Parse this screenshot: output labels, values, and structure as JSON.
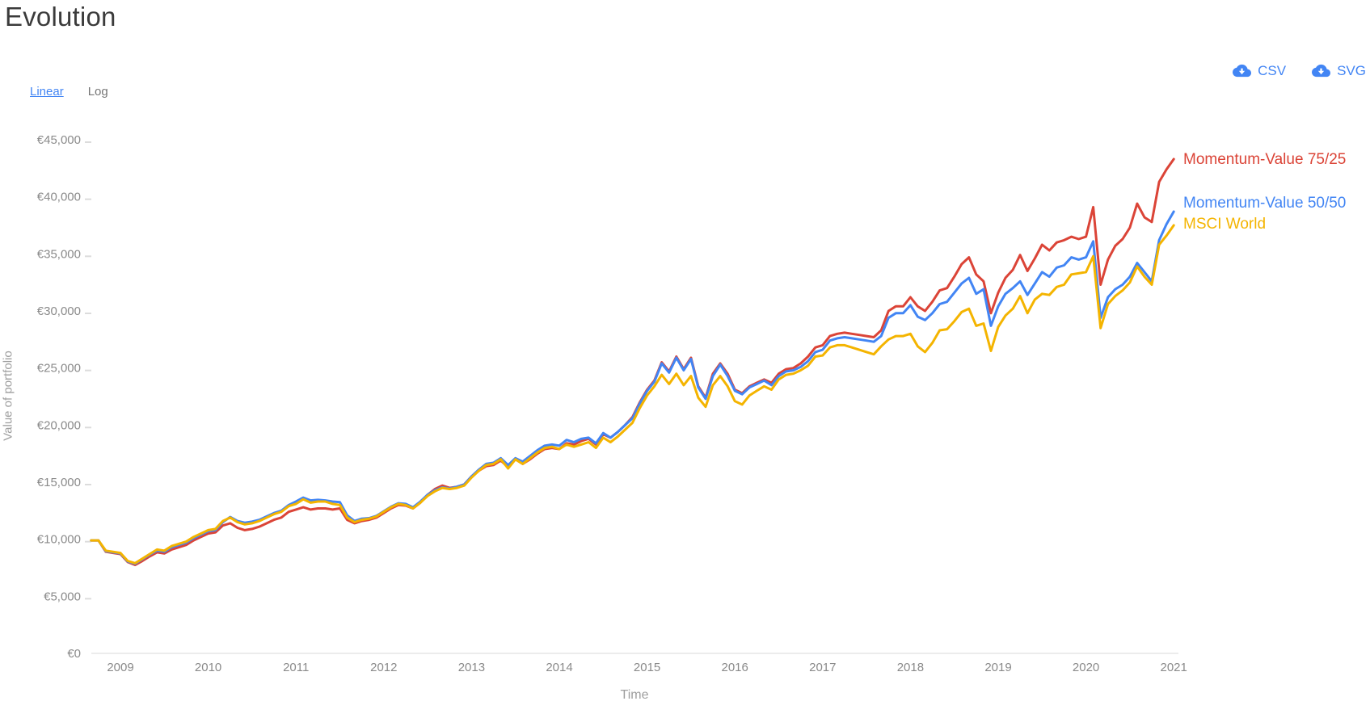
{
  "page": {
    "title": "Evolution"
  },
  "scale_toggle": {
    "linear_label": "Linear",
    "log_label": "Log",
    "active": "Linear"
  },
  "export_buttons": {
    "csv_label": "CSV",
    "svg_label": "SVG",
    "accent_color": "#4285F4"
  },
  "chart_data": {
    "type": "line",
    "title": "Evolution",
    "xlabel": "Time",
    "ylabel": "Value of portfolio",
    "grid": "off",
    "legend_position": "end-of-line-right",
    "x_axis": {
      "title": "Time",
      "tick_labels": [
        "2009",
        "2010",
        "2011",
        "2012",
        "2013",
        "2014",
        "2015",
        "2016",
        "2017",
        "2018",
        "2019",
        "2020",
        "2021"
      ]
    },
    "y_axis": {
      "title": "Value of portfolio",
      "tick_labels": [
        "€0",
        "€5,000",
        "€10,000",
        "€15,000",
        "€20,000",
        "€25,000",
        "€30,000",
        "€35,000",
        "€40,000",
        "€45,000"
      ],
      "tick_values": [
        0,
        5000,
        10000,
        15000,
        20000,
        25000,
        30000,
        35000,
        40000,
        45000
      ],
      "range": [
        0,
        45000
      ],
      "currency": "EUR"
    },
    "x_start_month": "2008-09",
    "x_end_month": "2021-01",
    "x_interval": "monthly",
    "series": [
      {
        "name": "Momentum-Value 75/25",
        "color": "#DB4437",
        "values": [
          9900,
          9900,
          8900,
          8800,
          8700,
          8000,
          7750,
          8100,
          8500,
          8850,
          8750,
          9100,
          9300,
          9500,
          9900,
          10200,
          10500,
          10600,
          11200,
          11400,
          11000,
          10800,
          10900,
          11100,
          11400,
          11700,
          11900,
          12400,
          12600,
          12800,
          12600,
          12700,
          12700,
          12600,
          12700,
          11700,
          11400,
          11600,
          11700,
          11900,
          12300,
          12700,
          13000,
          12950,
          12700,
          13200,
          13900,
          14400,
          14700,
          14500,
          14600,
          14800,
          15500,
          16000,
          16400,
          16500,
          16900,
          16300,
          17000,
          16600,
          17000,
          17500,
          17900,
          18000,
          17900,
          18400,
          18300,
          18600,
          18800,
          18300,
          19200,
          18900,
          19400,
          20000,
          20700,
          22000,
          23100,
          23900,
          25500,
          24700,
          26000,
          24900,
          25900,
          23400,
          22400,
          24500,
          25400,
          24500,
          23100,
          22800,
          23400,
          23700,
          24000,
          23700,
          24500,
          24900,
          25000,
          25400,
          26000,
          26800,
          27000,
          27800,
          28000,
          28100,
          28000,
          27900,
          27800,
          27700,
          28300,
          30000,
          30400,
          30400,
          31200,
          30400,
          30000,
          30800,
          31800,
          32000,
          33000,
          34100,
          34700,
          33200,
          32600,
          29800,
          31600,
          32900,
          33600,
          34900,
          33500,
          34600,
          35800,
          35300,
          36000,
          36200,
          36500,
          36300,
          36500,
          39100,
          32300,
          34500,
          35700,
          36300,
          37300,
          39400,
          38200,
          37800,
          41300,
          42400,
          43300
        ]
      },
      {
        "name": "Momentum-Value 50/50",
        "color": "#4285F4",
        "values": [
          9900,
          9900,
          8950,
          8850,
          8750,
          8050,
          7850,
          8250,
          8650,
          9000,
          8900,
          9300,
          9500,
          9700,
          10100,
          10400,
          10700,
          10800,
          11500,
          11950,
          11600,
          11450,
          11550,
          11700,
          12000,
          12300,
          12500,
          13000,
          13300,
          13650,
          13400,
          13450,
          13400,
          13300,
          13250,
          12100,
          11600,
          11800,
          11850,
          12050,
          12450,
          12850,
          13150,
          13100,
          12800,
          13300,
          13900,
          14300,
          14550,
          14450,
          14600,
          14800,
          15500,
          16100,
          16600,
          16700,
          17100,
          16500,
          17100,
          16800,
          17300,
          17800,
          18200,
          18300,
          18200,
          18700,
          18500,
          18800,
          18900,
          18400,
          19300,
          18900,
          19400,
          20000,
          20600,
          21900,
          23000,
          23800,
          25400,
          24600,
          25900,
          24800,
          25800,
          23300,
          22300,
          24300,
          25300,
          24300,
          23000,
          22700,
          23300,
          23600,
          23900,
          23500,
          24300,
          24700,
          24800,
          25100,
          25600,
          26400,
          26600,
          27400,
          27600,
          27700,
          27600,
          27500,
          27400,
          27300,
          27800,
          29400,
          29800,
          29800,
          30500,
          29500,
          29200,
          29800,
          30600,
          30800,
          31600,
          32400,
          32900,
          31500,
          31900,
          28700,
          30400,
          31500,
          32000,
          32600,
          31400,
          32400,
          33400,
          33000,
          33800,
          34000,
          34700,
          34500,
          34700,
          36100,
          29400,
          31200,
          31900,
          32300,
          33000,
          34200,
          33400,
          32600,
          36200,
          37600,
          38700
        ]
      },
      {
        "name": "MSCI World",
        "color": "#F4B400",
        "values": [
          9900,
          9900,
          9000,
          8900,
          8800,
          8100,
          7900,
          8300,
          8700,
          9100,
          9000,
          9400,
          9600,
          9800,
          10200,
          10500,
          10800,
          10900,
          11600,
          11900,
          11500,
          11300,
          11400,
          11600,
          11900,
          12200,
          12400,
          12900,
          13100,
          13500,
          13200,
          13300,
          13300,
          13100,
          13000,
          11900,
          11500,
          11700,
          11800,
          12000,
          12400,
          12800,
          13100,
          13000,
          12700,
          13200,
          13800,
          14200,
          14500,
          14400,
          14500,
          14700,
          15400,
          16000,
          16500,
          16600,
          17000,
          16200,
          17000,
          16600,
          17100,
          17600,
          18000,
          18100,
          17900,
          18300,
          18100,
          18300,
          18500,
          18000,
          18900,
          18500,
          19000,
          19600,
          20200,
          21500,
          22600,
          23400,
          24400,
          23600,
          24500,
          23500,
          24300,
          22400,
          21600,
          23500,
          24300,
          23400,
          22100,
          21800,
          22600,
          23000,
          23400,
          23100,
          24000,
          24400,
          24500,
          24800,
          25200,
          26000,
          26100,
          26800,
          27000,
          27000,
          26800,
          26600,
          26400,
          26200,
          26900,
          27500,
          27800,
          27800,
          28000,
          26900,
          26400,
          27200,
          28300,
          28400,
          29100,
          29900,
          30200,
          28700,
          28900,
          26500,
          28600,
          29600,
          30200,
          31300,
          29800,
          31000,
          31500,
          31400,
          32100,
          32300,
          33200,
          33300,
          33400,
          34800,
          28500,
          30600,
          31300,
          31800,
          32500,
          33900,
          33000,
          32300,
          35800,
          36600,
          37500
        ]
      }
    ]
  }
}
